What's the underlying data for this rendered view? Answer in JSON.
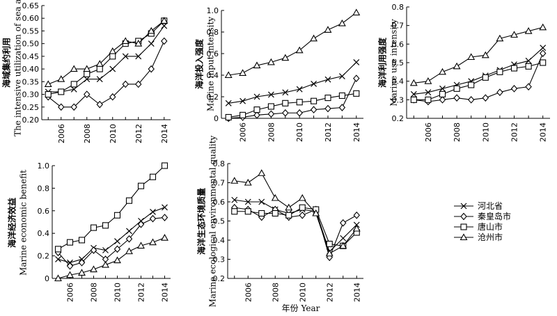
{
  "figure": {
    "xlabel": "年份 Year",
    "legend": {
      "placement": "right",
      "entries": [
        {
          "label": "河北省",
          "marker": "cross"
        },
        {
          "label": "秦皇岛市",
          "marker": "diamond"
        },
        {
          "label": "唐山市",
          "marker": "square"
        },
        {
          "label": "沧州市",
          "marker": "triangle"
        }
      ]
    }
  },
  "chart_data": [
    {
      "type": "line",
      "ylabel_cn": "海域集约利用",
      "ylabel_en": "The intensive utilization of sea aea",
      "ylim": [
        0.2,
        0.65
      ],
      "yticks": [
        "0.20",
        "0.25",
        "0.30",
        "0.35",
        "0.40",
        "0.45",
        "0.50",
        "0.55",
        "0.60",
        "0.65"
      ],
      "xlim": [
        2004.5,
        2014.5
      ],
      "xticks": [
        "2006",
        "2008",
        "2010",
        "2012",
        "2014"
      ],
      "x": [
        2005,
        2006,
        2007,
        2008,
        2009,
        2010,
        2011,
        2012,
        2013,
        2014
      ],
      "series": [
        {
          "name": "河北省",
          "marker": "cross",
          "values": [
            0.31,
            0.31,
            0.32,
            0.36,
            0.36,
            0.4,
            0.45,
            0.45,
            0.5,
            0.57
          ]
        },
        {
          "name": "秦皇岛市",
          "marker": "diamond",
          "values": [
            0.29,
            0.25,
            0.25,
            0.3,
            0.26,
            0.29,
            0.34,
            0.34,
            0.4,
            0.51
          ]
        },
        {
          "name": "唐山市",
          "marker": "square",
          "values": [
            0.3,
            0.31,
            0.34,
            0.38,
            0.4,
            0.45,
            0.5,
            0.51,
            0.54,
            0.59
          ]
        },
        {
          "name": "沧州市",
          "marker": "triangle",
          "values": [
            0.34,
            0.36,
            0.4,
            0.4,
            0.42,
            0.47,
            0.51,
            0.5,
            0.55,
            0.59
          ]
        }
      ]
    },
    {
      "type": "line",
      "ylabel_cn": "海洋投入强度",
      "ylabel_en": "Marine input intensity",
      "ylim": [
        0,
        1.0
      ],
      "yticks": [
        "0",
        "0.2",
        "0.4",
        "0.6",
        "0.8",
        "1.0"
      ],
      "xlim": [
        2004.5,
        2014.5
      ],
      "xticks": [
        "2006",
        "2008",
        "2010",
        "2012",
        "2014"
      ],
      "x": [
        2005,
        2006,
        2007,
        2008,
        2009,
        2010,
        2011,
        2012,
        2013,
        2014
      ],
      "series": [
        {
          "name": "河北省",
          "marker": "cross",
          "values": [
            0.14,
            0.16,
            0.2,
            0.22,
            0.24,
            0.27,
            0.32,
            0.36,
            0.39,
            0.52
          ]
        },
        {
          "name": "秦皇岛市",
          "marker": "diamond",
          "values": [
            0.0,
            0.01,
            0.03,
            0.04,
            0.05,
            0.05,
            0.08,
            0.09,
            0.1,
            0.37
          ]
        },
        {
          "name": "唐山市",
          "marker": "square",
          "values": [
            0.01,
            0.03,
            0.08,
            0.11,
            0.14,
            0.15,
            0.16,
            0.19,
            0.21,
            0.23
          ]
        },
        {
          "name": "沧州市",
          "marker": "triangle",
          "values": [
            0.4,
            0.42,
            0.49,
            0.52,
            0.56,
            0.63,
            0.74,
            0.82,
            0.88,
            0.98
          ]
        }
      ]
    },
    {
      "type": "line",
      "ylabel_cn": "海洋利用强度",
      "ylabel_en": "Marine use intensity",
      "ylim": [
        0.2,
        0.8
      ],
      "yticks": [
        "0.2",
        "0.3",
        "0.4",
        "0.5",
        "0.6",
        "0.7",
        "0.8"
      ],
      "xlim": [
        2004.5,
        2014.5
      ],
      "xticks": [
        "2006",
        "2008",
        "2010",
        "2012",
        "2014"
      ],
      "x": [
        2005,
        2006,
        2007,
        2008,
        2009,
        2010,
        2011,
        2012,
        2013,
        2014
      ],
      "series": [
        {
          "name": "河北省",
          "marker": "cross",
          "values": [
            0.33,
            0.34,
            0.36,
            0.38,
            0.4,
            0.43,
            0.46,
            0.49,
            0.51,
            0.58
          ]
        },
        {
          "name": "秦皇岛市",
          "marker": "diamond",
          "values": [
            0.3,
            0.29,
            0.3,
            0.31,
            0.3,
            0.31,
            0.34,
            0.36,
            0.37,
            0.55
          ]
        },
        {
          "name": "唐山市",
          "marker": "square",
          "values": [
            0.3,
            0.3,
            0.33,
            0.36,
            0.38,
            0.42,
            0.45,
            0.47,
            0.48,
            0.5
          ]
        },
        {
          "name": "沧州市",
          "marker": "triangle",
          "values": [
            0.39,
            0.4,
            0.45,
            0.48,
            0.53,
            0.54,
            0.63,
            0.65,
            0.67,
            0.69
          ]
        }
      ]
    },
    {
      "type": "line",
      "ylabel_cn": "海洋经济效益",
      "ylabel_en": "Marine economic benefit",
      "ylim": [
        0,
        1.0
      ],
      "yticks": [
        "0",
        "0.2",
        "0.4",
        "0.6",
        "0.8",
        "1.0"
      ],
      "xlim": [
        2004.5,
        2014.5
      ],
      "xticks": [
        "2006",
        "2008",
        "2010",
        "2012",
        "2014"
      ],
      "x": [
        2005,
        2006,
        2007,
        2008,
        2009,
        2010,
        2011,
        2012,
        2013,
        2014
      ],
      "series": [
        {
          "name": "河北省",
          "marker": "cross",
          "values": [
            0.17,
            0.14,
            0.17,
            0.27,
            0.25,
            0.33,
            0.42,
            0.51,
            0.59,
            0.63
          ]
        },
        {
          "name": "秦皇岛市",
          "marker": "diamond",
          "values": [
            0.23,
            0.11,
            0.14,
            0.25,
            0.17,
            0.26,
            0.35,
            0.48,
            0.53,
            0.54
          ]
        },
        {
          "name": "唐山市",
          "marker": "square",
          "values": [
            0.26,
            0.32,
            0.34,
            0.45,
            0.47,
            0.56,
            0.69,
            0.82,
            0.9,
            1.0
          ]
        },
        {
          "name": "沧州市",
          "marker": "triangle",
          "values": [
            0.0,
            0.03,
            0.05,
            0.08,
            0.12,
            0.16,
            0.24,
            0.29,
            0.32,
            0.36
          ]
        }
      ]
    },
    {
      "type": "line",
      "ylabel_cn": "海洋生态环境质量",
      "ylabel_en": "Marine ecological environmental quality",
      "ylim": [
        0.2,
        0.8
      ],
      "yticks": [
        "0.2",
        "0.3",
        "0.4",
        "0.5",
        "0.6",
        "0.7",
        "0.8"
      ],
      "xlim": [
        2004.5,
        2014.5
      ],
      "xticks": [
        "2006",
        "2008",
        "2010",
        "2012",
        "2014"
      ],
      "x": [
        2005,
        2006,
        2007,
        2008,
        2009,
        2010,
        2011,
        2012,
        2013,
        2014
      ],
      "series": [
        {
          "name": "河北省",
          "marker": "cross",
          "values": [
            0.61,
            0.6,
            0.6,
            0.56,
            0.54,
            0.56,
            0.55,
            0.34,
            0.41,
            0.48
          ]
        },
        {
          "name": "秦皇岛市",
          "marker": "diamond",
          "values": [
            0.57,
            0.56,
            0.52,
            0.56,
            0.52,
            0.53,
            0.56,
            0.31,
            0.49,
            0.53
          ]
        },
        {
          "name": "唐山市",
          "marker": "square",
          "values": [
            0.55,
            0.55,
            0.54,
            0.54,
            0.53,
            0.57,
            0.56,
            0.38,
            0.37,
            0.44
          ]
        },
        {
          "name": "沧州市",
          "marker": "triangle",
          "values": [
            0.71,
            0.7,
            0.75,
            0.62,
            0.57,
            0.62,
            0.54,
            0.33,
            0.37,
            0.46
          ]
        }
      ]
    }
  ]
}
